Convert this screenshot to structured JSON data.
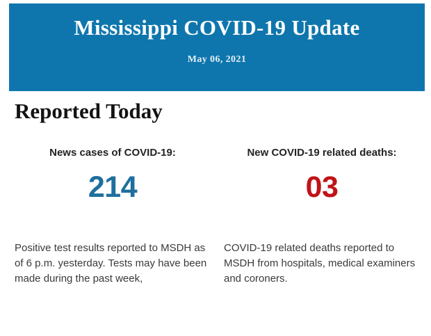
{
  "banner": {
    "title": "Mississippi COVID-19 Update",
    "date": "May 06, 2021",
    "background_color": "#0E76AD",
    "text_color": "#FDFEFE"
  },
  "section": {
    "title": "Reported Today"
  },
  "stats": [
    {
      "id": "new-cases",
      "label": "News cases of COVID-19:",
      "value": "214",
      "value_color": "#1E6F9E",
      "description_lines": [
        "Positive test results reported to MSDH as",
        "of 6 p.m. yesterday. Tests may have been",
        "made during the past week,"
      ]
    },
    {
      "id": "new-deaths",
      "label": "New COVID-19 related deaths:",
      "value": "03",
      "value_color": "#C01318",
      "description_lines": [
        "COVID-19 related deaths reported to",
        "MSDH from hospitals, medical examiners",
        "and coroners."
      ]
    }
  ]
}
